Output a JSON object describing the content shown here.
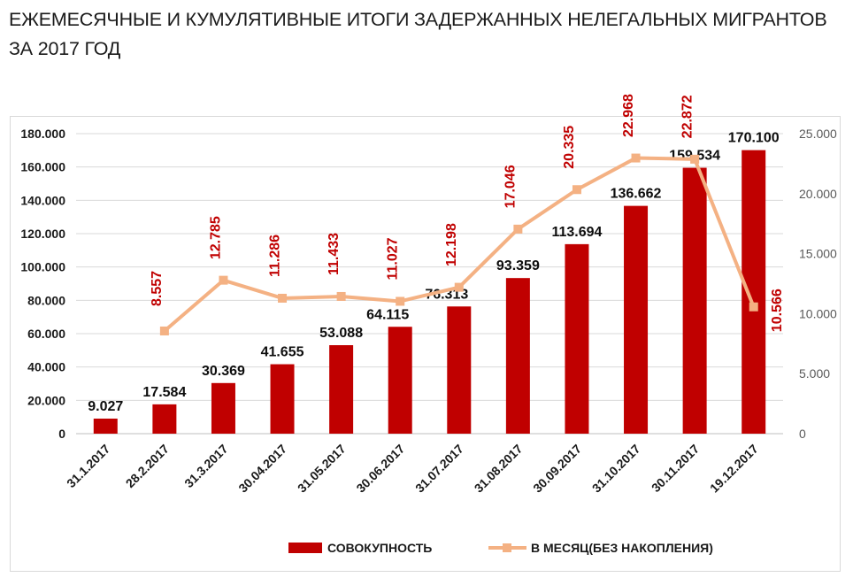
{
  "title": "ЕЖЕМЕСЯЧНЫЕ И КУМУЛЯТИВНЫЕ ИТОГИ ЗАДЕРЖАННЫХ НЕЛЕГАЛЬНЫХ МИГРАНТОВ ЗА 2017 ГОД",
  "chart_data": {
    "type": "bar",
    "title": "ЕЖЕМЕСЯЧНЫЕ И КУМУЛЯТИВНЫЕ ИТОГИ ЗАДЕРЖАННЫХ НЕЛЕГАЛЬНЫХ МИГРАНТОВ ЗА 2017 ГОД",
    "categories": [
      "31.1.2017",
      "28.2.2017",
      "31.3.2017",
      "30.04.2017",
      "31.05.2017",
      "30.06.2017",
      "31.07.2017",
      "31.08.2017",
      "30.09.2017",
      "31.10.2017",
      "30.11.2017",
      "19.12.2017"
    ],
    "series": [
      {
        "name": "СОВОКУПНОСТЬ",
        "type": "bar",
        "axis": "left",
        "color": "#c00000",
        "values": [
          9027,
          17584,
          30369,
          41655,
          53088,
          64115,
          76313,
          93359,
          113694,
          136662,
          159534,
          170100
        ],
        "labels": [
          "9.027",
          "17.584",
          "30.369",
          "41.655",
          "53.088",
          "64.115",
          "76.313",
          "93.359",
          "113.694",
          "136.662",
          "159.534",
          "170.100"
        ]
      },
      {
        "name": "В МЕСЯЦ(БЕЗ НАКОПЛЕНИЯ)",
        "type": "line",
        "axis": "right",
        "color": "#f4b183",
        "values": [
          null,
          8557,
          12785,
          11286,
          11433,
          11027,
          12198,
          17046,
          20335,
          22968,
          22872,
          10566
        ],
        "labels": [
          "",
          "8.557",
          "12.785",
          "11.286",
          "11.433",
          "11.027",
          "12.198",
          "17.046",
          "20.335",
          "22.968",
          "22.872",
          "10.566"
        ]
      }
    ],
    "y_left": {
      "range": [
        0,
        180000
      ],
      "ticks": [
        0,
        20000,
        40000,
        60000,
        80000,
        100000,
        120000,
        140000,
        160000,
        180000
      ],
      "tick_labels": [
        "0",
        "20.000",
        "40.000",
        "60.000",
        "80.000",
        "100.000",
        "120.000",
        "140.000",
        "160.000",
        "180.000"
      ]
    },
    "y_right": {
      "range": [
        0,
        25000
      ],
      "ticks": [
        0,
        5000,
        10000,
        15000,
        20000,
        25000
      ],
      "tick_labels": [
        "0",
        "5.000",
        "10.000",
        "15.000",
        "20.000",
        "25.000"
      ]
    },
    "xlabel": "",
    "ylabel": "",
    "grid": true,
    "legend_position": "bottom"
  }
}
